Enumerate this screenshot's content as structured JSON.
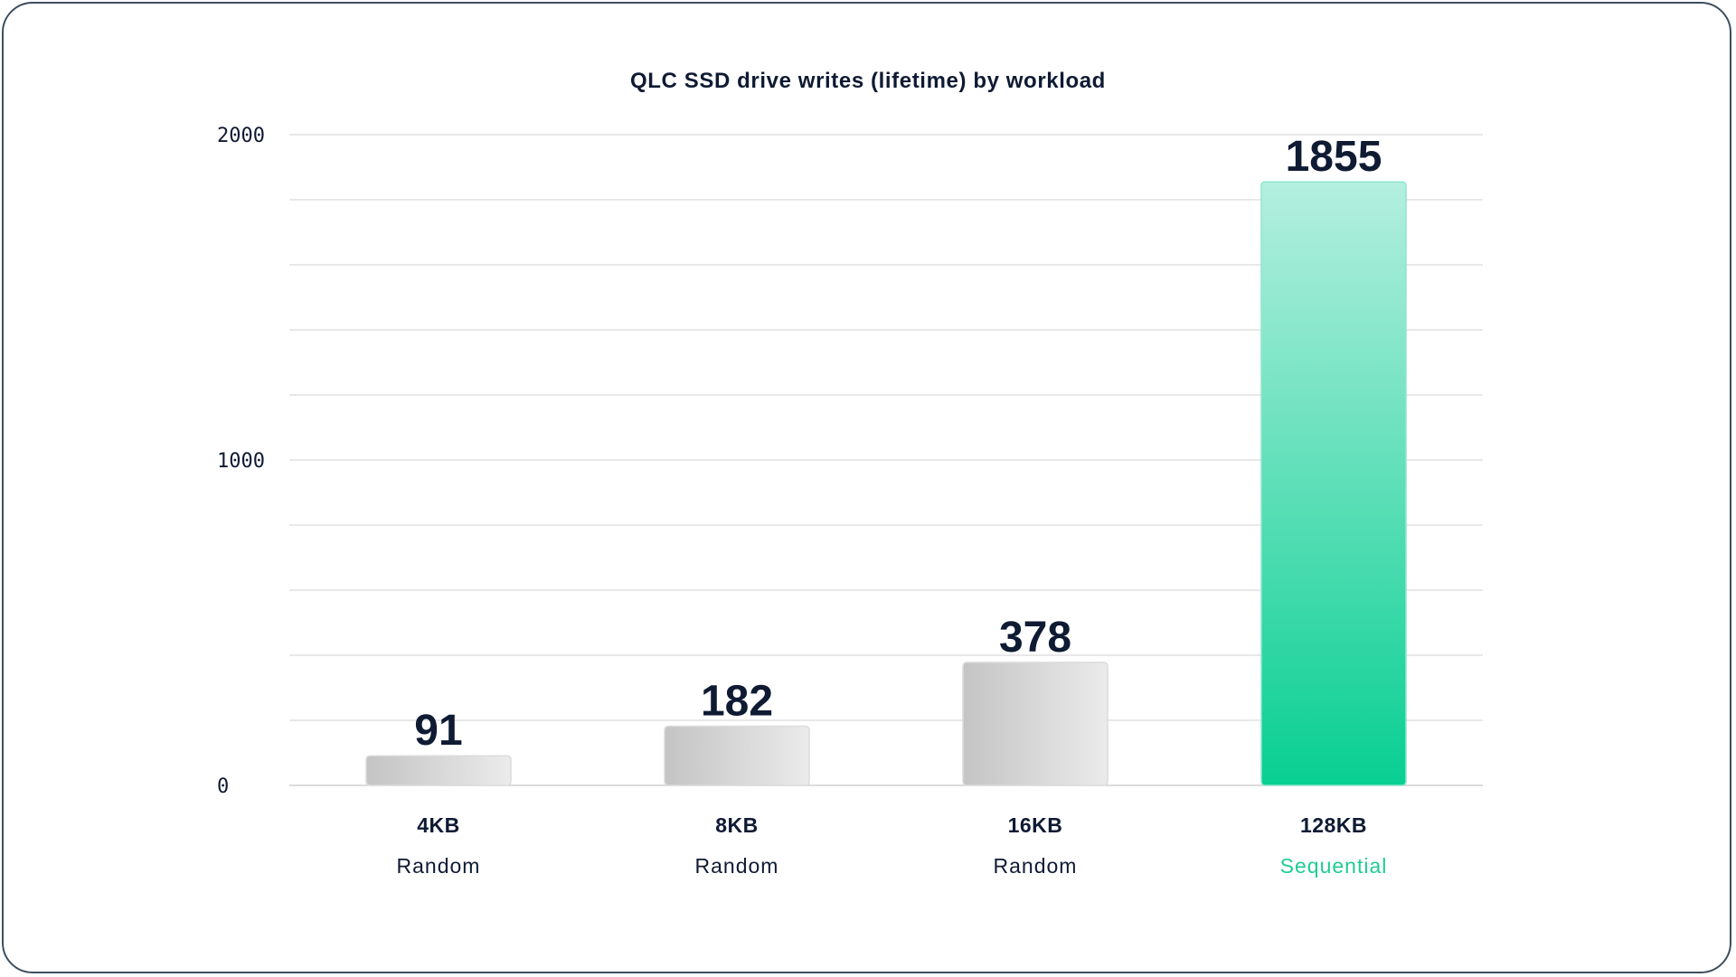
{
  "chart_data": {
    "type": "bar",
    "title": "QLC SSD drive writes (lifetime) by workload",
    "xlabel": "",
    "ylabel": "",
    "categories": [
      "4KB",
      "8KB",
      "16KB",
      "128KB"
    ],
    "category_sublabels": [
      "Random",
      "Random",
      "Random",
      "Sequential"
    ],
    "values": [
      91,
      182,
      378,
      1855
    ],
    "ylim": [
      0,
      2000
    ],
    "yticks": [
      "0",
      "1000",
      "2000"
    ],
    "grid": true,
    "highlight_index": 3,
    "colors": {
      "default_bar_light": "#ebebeb",
      "default_bar_dark": "#c4c4c4",
      "highlight_bar_top": "#b4efdf",
      "highlight_bar_bottom": "#08cf92",
      "highlight_text": "#1fcc92",
      "text": "#0f1a33",
      "grid": "#d9d9d9",
      "border": "#3d4f5f"
    }
  }
}
